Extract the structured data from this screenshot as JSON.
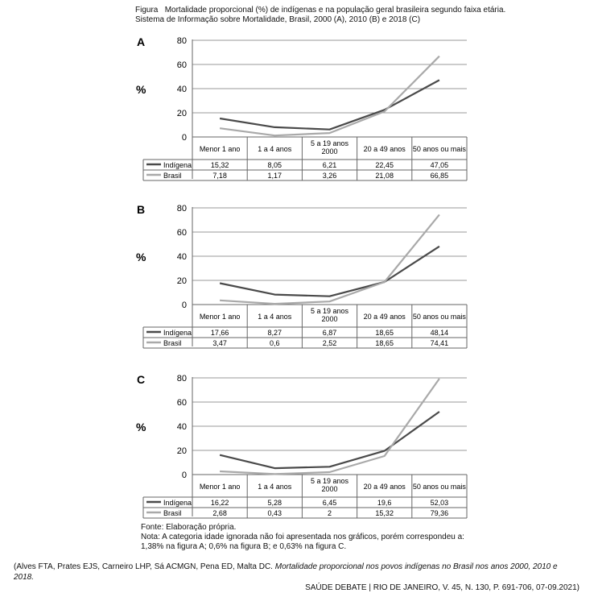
{
  "caption": {
    "label": "Figura",
    "title": "Mortalidade proporcional (%) de indígenas e na população geral brasileira segundo faixa etária.",
    "subtitle": "Sistema de Informação sobre Mortalidade, Brasil, 2000 (A), 2010 (B) e 2018 (C)"
  },
  "notes": {
    "source": "Fonte: Elaboração própria.",
    "note": "Nota: A categoria idade ignorada não foi apresentada nos gráficos, porém correspondeu a: 1,38% na figura A; 0,6% na figura B; e 0,63% na figura C."
  },
  "citation": {
    "authors": "(Alves FTA, Prates EJS, Carneiro LHP, Sá ACMGN, Pena ED, Malta DC. ",
    "article": "Mortalidade proporcional nos povos indígenas no Brasil nos anos 2000, 2010 e 2018.",
    "journal": "SAÚDE DEBATE | RIO DE JANEIRO, V. 45, N. 130, P. 691-706, 07-09.2021)"
  },
  "colors": {
    "indigena": "#4a4a4a",
    "brasil": "#a9a9a9",
    "grid": "#999999"
  },
  "chart_data": [
    {
      "type": "line",
      "panel": "A",
      "ylabel": "%",
      "ylim": [
        0,
        80
      ],
      "yticks": [
        0,
        20,
        40,
        60,
        80
      ],
      "grid": true,
      "categories": [
        "Menor 1 ano",
        "1 a 4 anos",
        "5 a 19 anos 2000",
        "20 a 49 anos",
        "50 anos ou mais"
      ],
      "series": [
        {
          "name": "Indígena",
          "values": [
            15.32,
            8.05,
            6.21,
            22.45,
            47.05
          ],
          "labels": [
            "15,32",
            "8,05",
            "6,21",
            "22,45",
            "47,05"
          ]
        },
        {
          "name": "Brasil",
          "values": [
            7.18,
            1.17,
            3.26,
            21.08,
            66.85
          ],
          "labels": [
            "7,18",
            "1,17",
            "3,26",
            "21,08",
            "66,85"
          ]
        }
      ]
    },
    {
      "type": "line",
      "panel": "B",
      "ylabel": "%",
      "ylim": [
        0,
        80
      ],
      "yticks": [
        0,
        20,
        40,
        60,
        80
      ],
      "grid": true,
      "categories": [
        "Menor 1 ano",
        "1 a 4 anos",
        "5 a 19 anos 2000",
        "20 a 49 anos",
        "50 anos ou mais"
      ],
      "series": [
        {
          "name": "Indígena",
          "values": [
            17.66,
            8.27,
            6.87,
            18.65,
            48.14
          ],
          "labels": [
            "17,66",
            "8,27",
            "6,87",
            "18,65",
            "48,14"
          ]
        },
        {
          "name": "Brasil",
          "values": [
            3.47,
            0.6,
            2.52,
            18.65,
            74.41
          ],
          "labels": [
            "3,47",
            "0,6",
            "2,52",
            "18,65",
            "74,41"
          ]
        }
      ]
    },
    {
      "type": "line",
      "panel": "C",
      "ylabel": "%",
      "ylim": [
        0,
        80
      ],
      "yticks": [
        0,
        20,
        40,
        60,
        80
      ],
      "grid": true,
      "categories": [
        "Menor 1 ano",
        "1 a 4 anos",
        "5 a 19 anos 2000",
        "20 a 49 anos",
        "50 anos ou mais"
      ],
      "series": [
        {
          "name": "Indígena",
          "values": [
            16.22,
            5.28,
            6.45,
            19.6,
            52.03
          ],
          "labels": [
            "16,22",
            "5,28",
            "6,45",
            "19,6",
            "52,03"
          ]
        },
        {
          "name": "Brasil",
          "values": [
            2.68,
            0.43,
            2,
            15.32,
            79.36
          ],
          "labels": [
            "2,68",
            "0,43",
            "2",
            "15,32",
            "79,36"
          ]
        }
      ]
    }
  ]
}
